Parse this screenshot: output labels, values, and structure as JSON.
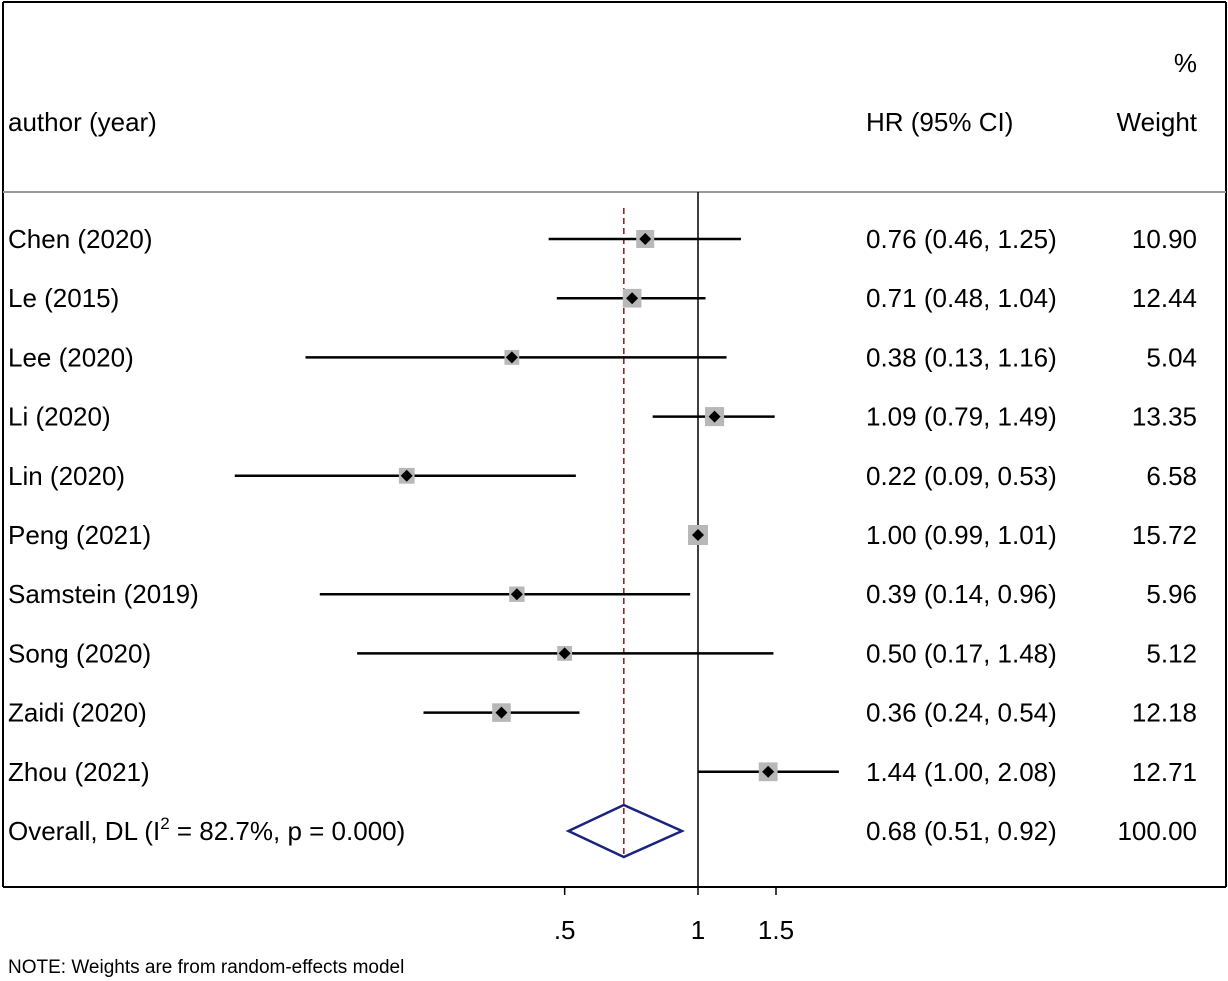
{
  "chart_data": {
    "type": "forest",
    "header": {
      "study_label": "author (year)",
      "effect_label": "HR (95% CI)",
      "weight_label_top": "%",
      "weight_label": "Weight"
    },
    "studies": [
      {
        "label": "Chen (2020)",
        "hr": 0.76,
        "lower": 0.46,
        "upper": 1.25,
        "ci_text": "0.76 (0.46, 1.25)",
        "weight": 10.9,
        "weight_text": "10.90"
      },
      {
        "label": "Le (2015)",
        "hr": 0.71,
        "lower": 0.48,
        "upper": 1.04,
        "ci_text": "0.71 (0.48, 1.04)",
        "weight": 12.44,
        "weight_text": "12.44"
      },
      {
        "label": "Lee (2020)",
        "hr": 0.38,
        "lower": 0.13,
        "upper": 1.16,
        "ci_text": "0.38 (0.13, 1.16)",
        "weight": 5.04,
        "weight_text": "5.04"
      },
      {
        "label": "Li (2020)",
        "hr": 1.09,
        "lower": 0.79,
        "upper": 1.49,
        "ci_text": "1.09 (0.79, 1.49)",
        "weight": 13.35,
        "weight_text": "13.35"
      },
      {
        "label": "Lin (2020)",
        "hr": 0.22,
        "lower": 0.09,
        "upper": 0.53,
        "ci_text": "0.22 (0.09, 0.53)",
        "weight": 6.58,
        "weight_text": "6.58"
      },
      {
        "label": "Peng  (2021)",
        "hr": 1.0,
        "lower": 0.99,
        "upper": 1.01,
        "ci_text": "1.00 (0.99, 1.01)",
        "weight": 15.72,
        "weight_text": "15.72"
      },
      {
        "label": "Samstein (2019)",
        "hr": 0.39,
        "lower": 0.14,
        "upper": 0.96,
        "ci_text": "0.39 (0.14, 0.96)",
        "weight": 5.96,
        "weight_text": "5.96"
      },
      {
        "label": "Song  (2020)",
        "hr": 0.5,
        "lower": 0.17,
        "upper": 1.48,
        "ci_text": "0.50 (0.17, 1.48)",
        "weight": 5.12,
        "weight_text": "5.12"
      },
      {
        "label": "Zaidi (2020)",
        "hr": 0.36,
        "lower": 0.24,
        "upper": 0.54,
        "ci_text": "0.36 (0.24, 0.54)",
        "weight": 12.18,
        "weight_text": "12.18"
      },
      {
        "label": "Zhou (2021)",
        "hr": 1.44,
        "lower": 1.0,
        "upper": 2.08,
        "ci_text": "1.44 (1.00, 2.08)",
        "weight": 12.71,
        "weight_text": "12.71"
      }
    ],
    "overall": {
      "label_prefix": "Overall, DL (I",
      "label_sup": "2",
      "label_suffix": " = 82.7%, p = 0.000)",
      "hr": 0.68,
      "lower": 0.51,
      "upper": 0.92,
      "ci_text": "0.68 (0.51, 0.92)",
      "weight_text": "100.00"
    },
    "x_axis": {
      "scale": "log",
      "range": [
        0.09,
        2.08
      ],
      "ticks": [
        0.5,
        1,
        1.5
      ],
      "tick_labels": [
        ".5",
        "1",
        "1.5"
      ],
      "null_line": 1
    },
    "note": "NOTE: Weights are from random-effects model",
    "colors": {
      "line": "#000000",
      "box": "#b8b8b8",
      "reference_line": "#8b1a1a",
      "diamond": "#1a237e",
      "header_rule": "#999999"
    }
  }
}
